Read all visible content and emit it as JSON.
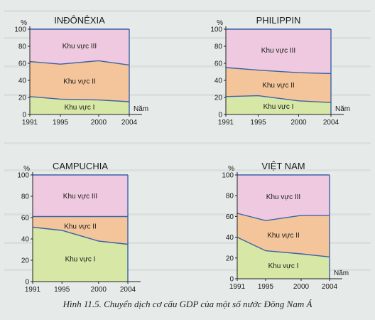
{
  "caption": "Hình 11.5. Chuyển dịch cơ cấu GDP của một số nước Đông Nam Á",
  "chart_data": [
    {
      "type": "area",
      "title": "INĐÔNÊXIA",
      "ylabel": "%",
      "xlabel": "Năm",
      "x": [
        1991,
        1995,
        2000,
        2004
      ],
      "y_ticks": [
        0,
        20,
        40,
        60,
        80,
        100
      ],
      "ylim": [
        0,
        100
      ],
      "series": [
        {
          "name": "Khu vực I",
          "values": [
            21,
            18,
            17,
            15
          ]
        },
        {
          "name": "Khu vực II",
          "values": [
            41,
            41,
            46,
            43
          ]
        },
        {
          "name": "Khu vực III",
          "values": [
            38,
            41,
            37,
            42
          ]
        }
      ]
    },
    {
      "type": "area",
      "title": "PHILIPPIN",
      "ylabel": "%",
      "xlabel": "Năm",
      "x": [
        1991,
        1995,
        2000,
        2004
      ],
      "y_ticks": [
        0,
        20,
        40,
        60,
        80,
        100
      ],
      "ylim": [
        0,
        100
      ],
      "series": [
        {
          "name": "Khu vực I",
          "values": [
            21,
            22,
            16,
            14
          ]
        },
        {
          "name": "Khu vực II",
          "values": [
            34,
            30,
            33,
            34
          ]
        },
        {
          "name": "Khu vực III",
          "values": [
            45,
            48,
            51,
            52
          ]
        }
      ]
    },
    {
      "type": "area",
      "title": "CAMPUCHIA",
      "ylabel": "%",
      "xlabel": "",
      "x": [
        1991,
        1995,
        2000,
        2004
      ],
      "y_ticks": [
        0,
        20,
        40,
        60,
        80,
        100
      ],
      "ylim": [
        0,
        100
      ],
      "series": [
        {
          "name": "Khu vực I",
          "values": [
            51,
            48,
            38,
            35
          ]
        },
        {
          "name": "Khu vực II",
          "values": [
            10,
            13,
            23,
            26
          ]
        },
        {
          "name": "Khu vực III",
          "values": [
            39,
            39,
            39,
            39
          ]
        }
      ]
    },
    {
      "type": "area",
      "title": "VIỆT NAM",
      "ylabel": "%",
      "xlabel": "Năm",
      "x": [
        1991,
        1995,
        2000,
        2004
      ],
      "y_ticks": [
        0,
        20,
        40,
        60,
        80,
        100
      ],
      "ylim": [
        0,
        100
      ],
      "series": [
        {
          "name": "Khu vực I",
          "values": [
            40,
            27,
            24,
            21
          ]
        },
        {
          "name": "Khu vực II",
          "values": [
            23,
            29,
            37,
            40
          ]
        },
        {
          "name": "Khu vực III",
          "values": [
            37,
            44,
            39,
            39
          ]
        }
      ]
    }
  ],
  "colors": {
    "khu_vuc_I": "#d6e7a6",
    "khu_vuc_II": "#f4c59a",
    "khu_vuc_III": "#eec9df",
    "boundary": "#3a63a8"
  }
}
